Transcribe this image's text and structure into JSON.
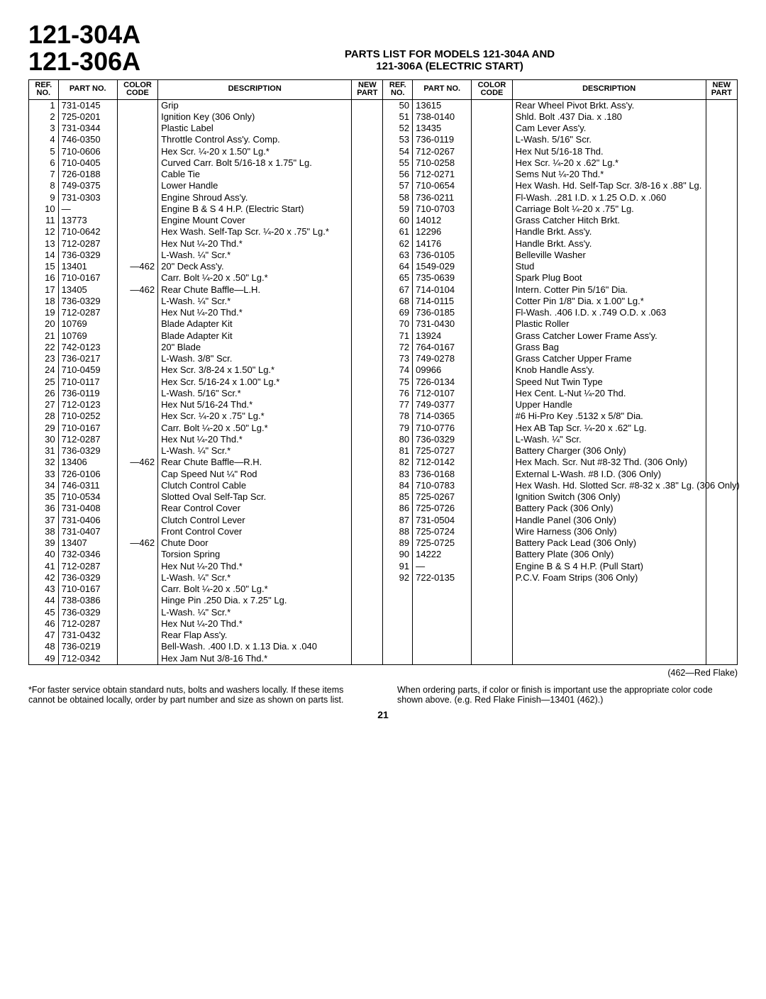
{
  "model_line1": "121-304A",
  "model_line2": "121-306A",
  "title_line1": "PARTS LIST FOR MODELS 121-304A AND",
  "title_line2": "121-306A (ELECTRIC START)",
  "headers": {
    "ref": "REF. NO.",
    "part": "PART NO.",
    "color": "COLOR CODE",
    "desc": "DESCRIPTION",
    "new": "NEW PART"
  },
  "left": [
    {
      "ref": "1",
      "part": "731-0145",
      "color": "",
      "desc": "Grip"
    },
    {
      "ref": "2",
      "part": "725-0201",
      "color": "",
      "desc": "Ignition Key (306 Only)"
    },
    {
      "ref": "3",
      "part": "731-0344",
      "color": "",
      "desc": "Plastic Label"
    },
    {
      "ref": "4",
      "part": "746-0350",
      "color": "",
      "desc": "Throttle Control Ass'y. Comp."
    },
    {
      "ref": "5",
      "part": "710-0606",
      "color": "",
      "desc": "Hex Scr. ¼-20 x 1.50\" Lg.*"
    },
    {
      "ref": "6",
      "part": "710-0405",
      "color": "",
      "desc": "Curved Carr. Bolt 5/16-18 x 1.75\" Lg."
    },
    {
      "ref": "7",
      "part": "726-0188",
      "color": "",
      "desc": "Cable Tie"
    },
    {
      "ref": "8",
      "part": "749-0375",
      "color": "",
      "desc": "Lower Handle"
    },
    {
      "ref": "9",
      "part": "731-0303",
      "color": "",
      "desc": "Engine Shroud Ass'y."
    },
    {
      "ref": "10",
      "part": "—",
      "color": "",
      "desc": "Engine B & S 4 H.P. (Electric Start)"
    },
    {
      "ref": "11",
      "part": "13773",
      "color": "",
      "desc": "Engine Mount Cover"
    },
    {
      "ref": "12",
      "part": "710-0642",
      "color": "",
      "desc": "Hex Wash. Self-Tap Scr. ¼-20 x .75\" Lg.*"
    },
    {
      "ref": "13",
      "part": "712-0287",
      "color": "",
      "desc": "Hex Nut ¼-20 Thd.*"
    },
    {
      "ref": "14",
      "part": "736-0329",
      "color": "",
      "desc": "L-Wash. ¼\" Scr.*"
    },
    {
      "ref": "15",
      "part": "13401",
      "color": "—462",
      "desc": "20\" Deck Ass'y."
    },
    {
      "ref": "16",
      "part": "710-0167",
      "color": "",
      "desc": "Carr. Bolt ¼-20 x .50\" Lg.*"
    },
    {
      "ref": "17",
      "part": "13405",
      "color": "—462",
      "desc": "Rear Chute Baffle—L.H."
    },
    {
      "ref": "18",
      "part": "736-0329",
      "color": "",
      "desc": "L-Wash. ¼\" Scr.*"
    },
    {
      "ref": "19",
      "part": "712-0287",
      "color": "",
      "desc": "Hex Nut ¼-20 Thd.*"
    },
    {
      "ref": "20",
      "part": "10769",
      "color": "",
      "desc": "Blade Adapter Kit"
    },
    {
      "ref": "21",
      "part": "10769",
      "color": "",
      "desc": "Blade Adapter Kit"
    },
    {
      "ref": "22",
      "part": "742-0123",
      "color": "",
      "desc": "20\" Blade"
    },
    {
      "ref": "23",
      "part": "736-0217",
      "color": "",
      "desc": "L-Wash. 3/8\" Scr."
    },
    {
      "ref": "24",
      "part": "710-0459",
      "color": "",
      "desc": "Hex Scr. 3/8-24 x 1.50\" Lg.*"
    },
    {
      "ref": "25",
      "part": "710-0117",
      "color": "",
      "desc": "Hex Scr. 5/16-24 x 1.00\" Lg.*"
    },
    {
      "ref": "26",
      "part": "736-0119",
      "color": "",
      "desc": "L-Wash. 5/16\" Scr.*"
    },
    {
      "ref": "27",
      "part": "712-0123",
      "color": "",
      "desc": "Hex Nut 5/16-24 Thd.*"
    },
    {
      "ref": "28",
      "part": "710-0252",
      "color": "",
      "desc": "Hex Scr. ¼-20 x .75\" Lg.*"
    },
    {
      "ref": "29",
      "part": "710-0167",
      "color": "",
      "desc": "Carr. Bolt ¼-20 x .50\" Lg.*"
    },
    {
      "ref": "30",
      "part": "712-0287",
      "color": "",
      "desc": "Hex Nut ¼-20 Thd.*"
    },
    {
      "ref": "31",
      "part": "736-0329",
      "color": "",
      "desc": "L-Wash. ¼\" Scr.*"
    },
    {
      "ref": "32",
      "part": "13406",
      "color": "—462",
      "desc": "Rear Chute Baffle—R.H."
    },
    {
      "ref": "33",
      "part": "726-0106",
      "color": "",
      "desc": "Cap Speed Nut ¼\" Rod"
    },
    {
      "ref": "34",
      "part": "746-0311",
      "color": "",
      "desc": "Clutch Control Cable"
    },
    {
      "ref": "35",
      "part": "710-0534",
      "color": "",
      "desc": "Slotted Oval Self-Tap Scr."
    },
    {
      "ref": "36",
      "part": "731-0408",
      "color": "",
      "desc": "Rear Control Cover"
    },
    {
      "ref": "37",
      "part": "731-0406",
      "color": "",
      "desc": "Clutch Control Lever"
    },
    {
      "ref": "38",
      "part": "731-0407",
      "color": "",
      "desc": "Front Control Cover"
    },
    {
      "ref": "39",
      "part": "13407",
      "color": "—462",
      "desc": "Chute Door"
    },
    {
      "ref": "40",
      "part": "732-0346",
      "color": "",
      "desc": "Torsion Spring"
    },
    {
      "ref": "41",
      "part": "712-0287",
      "color": "",
      "desc": "Hex Nut ¼-20 Thd.*"
    },
    {
      "ref": "42",
      "part": "736-0329",
      "color": "",
      "desc": "L-Wash. ¼\" Scr.*"
    },
    {
      "ref": "43",
      "part": "710-0167",
      "color": "",
      "desc": "Carr. Bolt ¼-20 x .50\" Lg.*"
    },
    {
      "ref": "44",
      "part": "738-0386",
      "color": "",
      "desc": "Hinge Pin .250 Dia. x 7.25\" Lg."
    },
    {
      "ref": "45",
      "part": "736-0329",
      "color": "",
      "desc": "L-Wash. ¼\" Scr.*"
    },
    {
      "ref": "46",
      "part": "712-0287",
      "color": "",
      "desc": "Hex Nut ¼-20 Thd.*"
    },
    {
      "ref": "47",
      "part": "731-0432",
      "color": "",
      "desc": "Rear Flap Ass'y."
    },
    {
      "ref": "48",
      "part": "736-0219",
      "color": "",
      "desc": "Bell-Wash. .400 I.D. x 1.13 Dia. x .040"
    },
    {
      "ref": "49",
      "part": "712-0342",
      "color": "",
      "desc": "Hex Jam Nut 3/8-16 Thd.*"
    }
  ],
  "right": [
    {
      "ref": "50",
      "part": "13615",
      "color": "",
      "desc": "Rear Wheel Pivot Brkt. Ass'y."
    },
    {
      "ref": "51",
      "part": "738-0140",
      "color": "",
      "desc": "Shld. Bolt .437 Dia. x .180"
    },
    {
      "ref": "52",
      "part": "13435",
      "color": "",
      "desc": "Cam Lever Ass'y."
    },
    {
      "ref": "53",
      "part": "736-0119",
      "color": "",
      "desc": "L-Wash. 5/16\" Scr."
    },
    {
      "ref": "54",
      "part": "712-0267",
      "color": "",
      "desc": "Hex Nut 5/16-18 Thd."
    },
    {
      "ref": "55",
      "part": "710-0258",
      "color": "",
      "desc": "Hex Scr. ¼-20 x .62\" Lg.*"
    },
    {
      "ref": "56",
      "part": "712-0271",
      "color": "",
      "desc": "Sems Nut ¼-20 Thd.*"
    },
    {
      "ref": "57",
      "part": "710-0654",
      "color": "",
      "desc": "Hex Wash. Hd. Self-Tap Scr. 3/8-16 x .88\" Lg."
    },
    {
      "ref": "58",
      "part": "736-0211",
      "color": "",
      "desc": "Fl-Wash. .281 I.D. x 1.25 O.D. x .060"
    },
    {
      "ref": "59",
      "part": "710-0703",
      "color": "",
      "desc": "Carriage Bolt ¼-20 x .75\" Lg."
    },
    {
      "ref": "60",
      "part": "14012",
      "color": "",
      "desc": "Grass Catcher Hitch Brkt."
    },
    {
      "ref": "61",
      "part": "12296",
      "color": "",
      "desc": "Handle Brkt. Ass'y."
    },
    {
      "ref": "62",
      "part": "14176",
      "color": "",
      "desc": "Handle Brkt. Ass'y."
    },
    {
      "ref": "63",
      "part": "736-0105",
      "color": "",
      "desc": "Belleville Washer"
    },
    {
      "ref": "64",
      "part": "1549-029",
      "color": "",
      "desc": "Stud"
    },
    {
      "ref": "65",
      "part": "735-0639",
      "color": "",
      "desc": "Spark Plug Boot"
    },
    {
      "ref": "67",
      "part": "714-0104",
      "color": "",
      "desc": "Intern. Cotter Pin 5/16\" Dia."
    },
    {
      "ref": "68",
      "part": "714-0115",
      "color": "",
      "desc": "Cotter Pin 1/8\" Dia. x 1.00\" Lg.*"
    },
    {
      "ref": "69",
      "part": "736-0185",
      "color": "",
      "desc": "Fl-Wash. .406 I.D. x .749 O.D. x .063"
    },
    {
      "ref": "70",
      "part": "731-0430",
      "color": "",
      "desc": "Plastic Roller"
    },
    {
      "ref": "71",
      "part": "13924",
      "color": "",
      "desc": "Grass Catcher Lower Frame Ass'y."
    },
    {
      "ref": "72",
      "part": "764-0167",
      "color": "",
      "desc": "Grass Bag"
    },
    {
      "ref": "73",
      "part": "749-0278",
      "color": "",
      "desc": "Grass Catcher Upper Frame"
    },
    {
      "ref": "74",
      "part": "09966",
      "color": "",
      "desc": "Knob Handle Ass'y."
    },
    {
      "ref": "75",
      "part": "726-0134",
      "color": "",
      "desc": "Speed Nut Twin Type"
    },
    {
      "ref": "76",
      "part": "712-0107",
      "color": "",
      "desc": "Hex Cent. L-Nut ¼-20 Thd."
    },
    {
      "ref": "77",
      "part": "749-0377",
      "color": "",
      "desc": "Upper Handle"
    },
    {
      "ref": "78",
      "part": "714-0365",
      "color": "",
      "desc": "#6 Hi-Pro Key .5132 x 5/8\" Dia."
    },
    {
      "ref": "79",
      "part": "710-0776",
      "color": "",
      "desc": "Hex AB Tap Scr. ¼-20 x .62\" Lg."
    },
    {
      "ref": "80",
      "part": "736-0329",
      "color": "",
      "desc": "L-Wash. ¼\" Scr."
    },
    {
      "ref": "81",
      "part": "725-0727",
      "color": "",
      "desc": "Battery Charger (306 Only)"
    },
    {
      "ref": "82",
      "part": "712-0142",
      "color": "",
      "desc": "Hex Mach. Scr. Nut #8-32 Thd. (306 Only)"
    },
    {
      "ref": "83",
      "part": "736-0168",
      "color": "",
      "desc": "External L-Wash. #8 I.D. (306 Only)"
    },
    {
      "ref": "84",
      "part": "710-0783",
      "color": "",
      "desc": "Hex Wash. Hd. Slotted Scr. #8-32 x .38\" Lg. (306 Only)"
    },
    {
      "ref": "85",
      "part": "725-0267",
      "color": "",
      "desc": "Ignition Switch (306 Only)"
    },
    {
      "ref": "86",
      "part": "725-0726",
      "color": "",
      "desc": "Battery Pack (306 Only)"
    },
    {
      "ref": "87",
      "part": "731-0504",
      "color": "",
      "desc": "Handle Panel (306 Only)"
    },
    {
      "ref": "88",
      "part": "725-0724",
      "color": "",
      "desc": "Wire Harness (306 Only)"
    },
    {
      "ref": "89",
      "part": "725-0725",
      "color": "",
      "desc": "Battery Pack Lead (306 Only)"
    },
    {
      "ref": "90",
      "part": "14222",
      "color": "",
      "desc": "Battery Plate (306 Only)"
    },
    {
      "ref": "91",
      "part": "—",
      "color": "",
      "desc": "Engine B & S 4 H.P. (Pull Start)"
    },
    {
      "ref": "92",
      "part": "722-0135",
      "color": "",
      "desc": "P.C.V. Foam Strips (306 Only)"
    }
  ],
  "color_note": "(462—Red Flake)",
  "footnote_left": "*For faster service obtain standard nuts, bolts and washers locally. If these items cannot be obtained locally, order by part number and size as shown on parts list.",
  "footnote_right": "When ordering parts, if color or finish is important use the appropriate color code shown above. (e.g. Red Flake Finish—13401 (462).)",
  "page_number": "21"
}
